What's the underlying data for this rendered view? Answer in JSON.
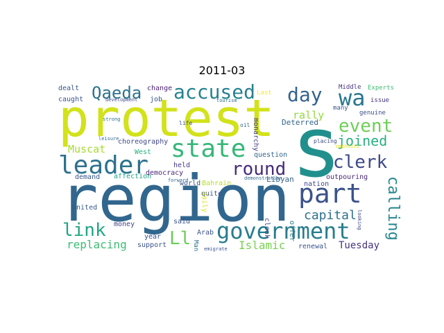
{
  "title": "2011-03",
  "words": [
    {
      "text": "protest",
      "color": "#d2e21b",
      "weight": 1.0
    },
    {
      "text": "region",
      "color": "#31668e",
      "weight": 1.0
    },
    {
      "text": "s",
      "color": "#21908d",
      "weight": 0.9
    },
    {
      "text": "government",
      "color": "#287d8e",
      "weight": 0.55
    },
    {
      "text": "state",
      "color": "#35b779",
      "weight": 0.55
    },
    {
      "text": "part",
      "color": "#3b528b",
      "weight": 0.55
    },
    {
      "text": "leader",
      "color": "#2c728e",
      "weight": 0.55
    },
    {
      "text": "accused",
      "color": "#26828e",
      "weight": 0.5
    },
    {
      "text": "wa",
      "color": "#2a788e",
      "weight": 0.5
    },
    {
      "text": "day",
      "color": "#33638d",
      "weight": 0.45
    },
    {
      "text": "Qaeda",
      "color": "#2c728e",
      "weight": 0.45
    },
    {
      "text": "event",
      "color": "#6ece58",
      "weight": 0.45
    },
    {
      "text": "round",
      "color": "#472c7a",
      "weight": 0.42
    },
    {
      "text": "clerk",
      "color": "#3e4a89",
      "weight": 0.42
    },
    {
      "text": "link",
      "color": "#21a585",
      "weight": 0.42
    },
    {
      "text": "joined",
      "color": "#29af7f",
      "weight": 0.38
    },
    {
      "text": "Ll",
      "color": "#6ccd5a",
      "weight": 0.4
    },
    {
      "text": "calling",
      "color": "#25858e",
      "weight": 0.35
    },
    {
      "text": "capital",
      "color": "#2d708e",
      "weight": 0.3
    },
    {
      "text": "Islamic",
      "color": "#7ad151",
      "weight": 0.3
    },
    {
      "text": "replacing",
      "color": "#3dbc74",
      "weight": 0.3
    },
    {
      "text": "Tuesday",
      "color": "#46337e",
      "weight": 0.28
    },
    {
      "text": "Muscat",
      "color": "#a8db34",
      "weight": 0.28
    },
    {
      "text": "rally",
      "color": "#95d840",
      "weight": 0.28
    },
    {
      "text": "choreography",
      "color": "#3f4788",
      "weight": 0.18
    },
    {
      "text": "West",
      "color": "#2cb17e",
      "weight": 0.18
    },
    {
      "text": "affection",
      "color": "#20a386",
      "weight": 0.18
    },
    {
      "text": "democracy",
      "color": "#482677",
      "weight": 0.18
    },
    {
      "text": "world",
      "color": "#3b528b",
      "weight": 0.16
    },
    {
      "text": "Bahrain",
      "color": "#b5de2b",
      "weight": 0.16
    },
    {
      "text": "quite",
      "color": "#3b528b",
      "weight": 0.16
    },
    {
      "text": "held",
      "color": "#443a83",
      "weight": 0.16
    },
    {
      "text": "demand",
      "color": "#39558c",
      "weight": 0.16
    },
    {
      "text": "Libyan",
      "color": "#34618d",
      "weight": 0.18
    },
    {
      "text": "question",
      "color": "#31668e",
      "weight": 0.16
    },
    {
      "text": "Deterred",
      "color": "#32648e",
      "weight": 0.18
    },
    {
      "text": "outpouring",
      "color": "#482878",
      "weight": 0.18
    },
    {
      "text": "nation",
      "color": "#3e4989",
      "weight": 0.16
    },
    {
      "text": "genuine",
      "color": "#3b528b",
      "weight": 0.16
    },
    {
      "text": "many",
      "color": "#3b528b",
      "weight": 0.16
    },
    {
      "text": "issue",
      "color": "#46337e",
      "weight": 0.16
    },
    {
      "text": "Middle",
      "color": "#46337e",
      "weight": 0.16
    },
    {
      "text": "Experts",
      "color": "#3dbc74",
      "weight": 0.16
    },
    {
      "text": "Last",
      "color": "#fde725",
      "weight": 0.16
    },
    {
      "text": "oil",
      "color": "#31688e",
      "weight": 0.12
    },
    {
      "text": "life",
      "color": "#3f4788",
      "weight": 0.12
    },
    {
      "text": "monarchy",
      "color": "#433e85",
      "weight": 0.16
    },
    {
      "text": "placing",
      "color": "#3e4989",
      "weight": 0.12
    },
    {
      "text": "emphasis",
      "color": "#e5e419",
      "weight": 0.12
    },
    {
      "text": "job",
      "color": "#3b528b",
      "weight": 0.16
    },
    {
      "text": "change",
      "color": "#481f71",
      "weight": 0.16
    },
    {
      "text": "dealt",
      "color": "#39558c",
      "weight": 0.16
    },
    {
      "text": "caught",
      "color": "#39558c",
      "weight": 0.16
    },
    {
      "text": "development",
      "color": "#3e4989",
      "weight": 0.12
    },
    {
      "text": "tourism",
      "color": "#2c728e",
      "weight": 0.12
    },
    {
      "text": "strong",
      "color": "#2c728e",
      "weight": 0.12
    },
    {
      "text": "leisure",
      "color": "#31688e",
      "weight": 0.12
    },
    {
      "text": "forward",
      "color": "#33638d",
      "weight": 0.12
    },
    {
      "text": "demonstration",
      "color": "#31688e",
      "weight": 0.12
    },
    {
      "text": "emigrate",
      "color": "#3b528b",
      "weight": 0.12
    },
    {
      "text": "looking",
      "color": "#3e4989",
      "weight": 0.12
    },
    {
      "text": "daily",
      "color": "#dde318",
      "weight": 0.16
    },
    {
      "text": "cloak",
      "color": "#3e4989",
      "weight": 0.16
    },
    {
      "text": "offer",
      "color": "#2a788e",
      "weight": 0.16
    },
    {
      "text": "renewal",
      "color": "#39558c",
      "weight": 0.16
    },
    {
      "text": "support",
      "color": "#3b528b",
      "weight": 0.16
    },
    {
      "text": "year",
      "color": "#3b528b",
      "weight": 0.16
    },
    {
      "text": "said",
      "color": "#3b528b",
      "weight": 0.16
    },
    {
      "text": "Arab",
      "color": "#3b528b",
      "weight": 0.16
    },
    {
      "text": "Man",
      "color": "#2c728e",
      "weight": 0.14
    },
    {
      "text": "money",
      "color": "#414487",
      "weight": 0.16
    },
    {
      "text": "United",
      "color": "#38598c",
      "weight": 0.16
    }
  ]
}
